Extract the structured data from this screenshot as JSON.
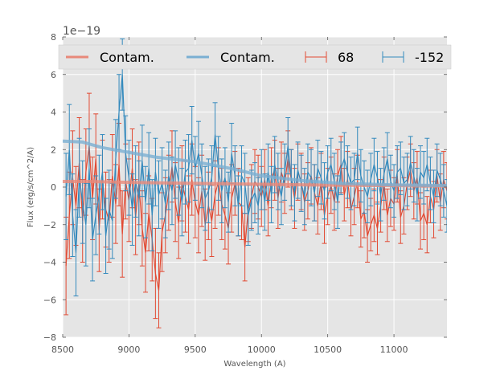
{
  "chart_data": {
    "type": "line",
    "title": "",
    "xlabel": "Wavelength (A)",
    "ylabel": "Flux (erg/s/cm^2/A)",
    "y_offset_label": "1e−19",
    "xlim": [
      8500,
      11400
    ],
    "ylim": [
      -8,
      8
    ],
    "xticks": [
      8500,
      9000,
      9500,
      10000,
      10500,
      11000
    ],
    "xtick_labels": [
      "8500",
      "9000",
      "9500",
      "10000",
      "10500",
      "11000"
    ],
    "yticks": [
      -8,
      -6,
      -4,
      -2,
      0,
      2,
      4,
      6,
      8
    ],
    "ytick_labels": [
      "−8",
      "−6",
      "−4",
      "−2",
      "0",
      "2",
      "4",
      "6",
      "8"
    ],
    "grid": true,
    "legend": {
      "placement": "top",
      "columns": 4,
      "entries": [
        {
          "label": "Contam.",
          "kind": "line",
          "color": "#E8897A"
        },
        {
          "label": "Contam.",
          "kind": "line",
          "color": "#7AAFD2"
        },
        {
          "label": "68",
          "kind": "errorbar",
          "color": "#E24A33"
        },
        {
          "label": "-152",
          "kind": "errorbar",
          "color": "#348ABD"
        }
      ]
    },
    "x": [
      8525,
      8550,
      8575,
      8600,
      8625,
      8650,
      8675,
      8700,
      8725,
      8750,
      8775,
      8800,
      8825,
      8850,
      8875,
      8900,
      8925,
      8950,
      8975,
      9000,
      9025,
      9050,
      9075,
      9100,
      9125,
      9150,
      9175,
      9200,
      9225,
      9250,
      9275,
      9300,
      9325,
      9350,
      9375,
      9400,
      9425,
      9450,
      9475,
      9500,
      9525,
      9550,
      9575,
      9600,
      9625,
      9650,
      9675,
      9700,
      9725,
      9750,
      9775,
      9800,
      9825,
      9850,
      9875,
      9900,
      9925,
      9950,
      9975,
      10000,
      10025,
      10050,
      10075,
      10100,
      10125,
      10150,
      10175,
      10200,
      10225,
      10250,
      10275,
      10300,
      10325,
      10350,
      10375,
      10400,
      10425,
      10450,
      10475,
      10500,
      10525,
      10550,
      10575,
      10600,
      10625,
      10650,
      10675,
      10700,
      10725,
      10750,
      10775,
      10800,
      10825,
      10850,
      10875,
      10900,
      10925,
      10950,
      10975,
      11000,
      11025,
      11050,
      11075,
      11100,
      11125,
      11150,
      11175,
      11200,
      11225,
      11250,
      11275,
      11300,
      11325,
      11350,
      11375,
      11400
    ],
    "series": [
      {
        "name": "68",
        "kind": "errorbar",
        "color": "#E24A33",
        "values": [
          -4.2,
          -1.5,
          0.5,
          -1.0,
          1.3,
          -1.8,
          0.8,
          2.2,
          -0.6,
          1.5,
          -2.3,
          0.4,
          -1.2,
          -1.8,
          0.6,
          -0.9,
          1.2,
          -2.5,
          0.3,
          -0.7,
          1.0,
          -1.6,
          0.2,
          -2.2,
          -3.5,
          -1.4,
          -2.8,
          -4.6,
          -5.5,
          -2.4,
          -1.5,
          -0.3,
          1.1,
          -0.8,
          -1.9,
          0.2,
          -0.5,
          -1.2,
          0.4,
          -0.8,
          -1.5,
          -0.2,
          -2.0,
          -1.0,
          -1.8,
          -0.4,
          0.3,
          -0.9,
          -1.5,
          -2.2,
          -0.6,
          0.2,
          -0.8,
          -1.0,
          -3.2,
          -1.2,
          -0.5,
          0.3,
          0.0,
          -0.5,
          0.4,
          -1.0,
          0.5,
          0.9,
          -0.6,
          0.8,
          0.2,
          1.5,
          0.4,
          -0.6,
          0.8,
          0.3,
          -0.8,
          -0.2,
          0.6,
          -0.3,
          -1.0,
          0.3,
          -1.5,
          -0.5,
          0.1,
          -0.8,
          0.6,
          1.2,
          -0.4,
          0.4,
          -1.2,
          -0.5,
          0.3,
          -1.7,
          -1.3,
          -2.6,
          -2.0,
          -1.5,
          -2.2,
          -1.0,
          0.2,
          -1.5,
          -0.6,
          -0.9,
          0.6,
          -1.6,
          -1.0,
          0.2,
          0.9,
          -0.2,
          0.5,
          -1.8,
          -1.4,
          -2.0,
          -0.5,
          -1.2,
          0.6,
          -0.8,
          0.4,
          -0.2
        ],
        "errors": [
          2.6,
          2.3,
          2.5,
          2.1,
          2.4,
          2.2,
          2.3,
          2.8,
          2.2,
          2.4,
          2.2,
          2.1,
          2.0,
          2.2,
          2.2,
          2.1,
          2.2,
          2.3,
          2.0,
          2.2,
          2.1,
          2.0,
          2.2,
          2.0,
          2.1,
          2.0,
          2.2,
          2.4,
          2.0,
          2.1,
          2.0,
          2.0,
          1.9,
          2.1,
          1.9,
          2.0,
          1.9,
          1.8,
          1.9,
          1.9,
          2.0,
          1.9,
          1.9,
          1.8,
          1.9,
          1.8,
          1.8,
          1.9,
          1.8,
          1.9,
          1.8,
          1.7,
          1.8,
          1.8,
          1.8,
          1.7,
          1.7,
          1.7,
          1.7,
          1.6,
          1.6,
          1.6,
          1.6,
          1.6,
          1.6,
          1.6,
          1.6,
          1.5,
          1.6,
          1.6,
          1.5,
          1.5,
          1.5,
          1.5,
          1.5,
          1.5,
          1.5,
          1.5,
          1.5,
          1.5,
          1.5,
          1.5,
          1.4,
          1.5,
          1.4,
          1.5,
          1.4,
          1.5,
          1.4,
          1.5,
          1.4,
          1.4,
          1.4,
          1.4,
          1.4,
          1.4,
          1.4,
          1.4,
          1.5,
          1.4,
          1.4,
          1.4,
          1.5,
          1.4,
          1.4,
          1.5,
          1.4,
          1.5,
          1.4,
          1.5,
          1.4,
          1.5,
          1.4,
          1.5,
          1.5,
          1.5
        ]
      },
      {
        "name": "-152",
        "kind": "errorbar",
        "color": "#348ABD",
        "values": [
          -0.5,
          2.0,
          -1.5,
          -3.5,
          0.5,
          -0.8,
          -2.0,
          1.0,
          -2.8,
          -1.5,
          -0.4,
          0.8,
          -2.6,
          -1.2,
          -1.8,
          1.5,
          4.0,
          6.0,
          1.8,
          0.5,
          -1.2,
          0.3,
          -0.6,
          1.4,
          -0.8,
          1.0,
          -1.5,
          0.8,
          -0.4,
          0.2,
          -0.9,
          0.6,
          -0.2,
          1.2,
          0.3,
          -0.8,
          0.8,
          1.0,
          2.5,
          1.0,
          1.8,
          0.6,
          -0.6,
          -0.2,
          0.5,
          2.8,
          1.0,
          -0.2,
          0.5,
          -0.8,
          1.8,
          0.6,
          -1.0,
          0.6,
          0.2,
          -1.5,
          -0.7,
          -0.3,
          -1.0,
          0.4,
          -0.8,
          0.8,
          -0.4,
          1.2,
          0.3,
          -0.5,
          0.8,
          2.2,
          0.5,
          -0.3,
          0.9,
          0.2,
          -0.5,
          0.8,
          0.5,
          -0.3,
          1.0,
          0.5,
          -0.2,
          0.8,
          1.2,
          0.3,
          -0.8,
          1.0,
          1.5,
          0.8,
          0.2,
          0.4,
          1.8,
          0.6,
          0.0,
          -0.5,
          0.4,
          1.2,
          0.5,
          -0.4,
          0.7,
          1.5,
          0.3,
          -0.2,
          0.8,
          1.0,
          0.2,
          0.4,
          1.3,
          0.6,
          -0.4,
          0.8,
          0.5,
          1.2,
          0.2,
          -0.5,
          0.9,
          0.4,
          -0.2,
          -1.0
        ],
        "errors": [
          2.3,
          2.4,
          2.2,
          2.3,
          2.1,
          2.2,
          2.2,
          2.1,
          2.2,
          2.1,
          2.1,
          2.0,
          2.0,
          2.1,
          2.0,
          2.1,
          2.0,
          1.9,
          2.0,
          2.0,
          1.9,
          1.9,
          2.0,
          1.9,
          1.9,
          1.9,
          1.9,
          1.8,
          1.8,
          1.9,
          1.8,
          1.8,
          1.8,
          1.8,
          1.8,
          1.8,
          1.7,
          1.8,
          1.8,
          1.7,
          1.7,
          1.7,
          1.7,
          1.7,
          1.7,
          1.7,
          1.7,
          1.7,
          1.6,
          1.6,
          1.6,
          1.6,
          1.6,
          1.6,
          1.6,
          1.6,
          1.6,
          1.6,
          1.5,
          1.6,
          1.5,
          1.5,
          1.5,
          1.5,
          1.5,
          1.5,
          1.5,
          1.5,
          1.5,
          1.5,
          1.5,
          1.5,
          1.5,
          1.5,
          1.5,
          1.5,
          1.5,
          1.4,
          1.5,
          1.4,
          1.4,
          1.5,
          1.4,
          1.4,
          1.4,
          1.4,
          1.4,
          1.4,
          1.4,
          1.4,
          1.4,
          1.4,
          1.4,
          1.4,
          1.4,
          1.4,
          1.4,
          1.4,
          1.4,
          1.4,
          1.4,
          1.4,
          1.4,
          1.4,
          1.4,
          1.4,
          1.4,
          1.4,
          1.4,
          1.4,
          1.4,
          1.4,
          1.4,
          1.4,
          1.4,
          1.4
        ]
      },
      {
        "name": "Contam.",
        "kind": "line",
        "color": "#E8897A",
        "x": [
          8500,
          8700,
          9000,
          9500,
          10000,
          10500,
          11000,
          11400
        ],
        "values": [
          0.3,
          0.3,
          0.25,
          0.2,
          0.15,
          0.1,
          0.08,
          0.05
        ]
      },
      {
        "name": "Contam.",
        "kind": "line",
        "color": "#7AAFD2",
        "x": [
          8500,
          8650,
          8700,
          8800,
          9000,
          9200,
          9500,
          9800,
          10000,
          10300,
          10600,
          11000,
          11400
        ],
        "values": [
          2.45,
          2.4,
          2.3,
          2.1,
          1.85,
          1.6,
          1.35,
          0.95,
          0.6,
          0.35,
          0.2,
          0.12,
          0.08
        ]
      }
    ]
  }
}
